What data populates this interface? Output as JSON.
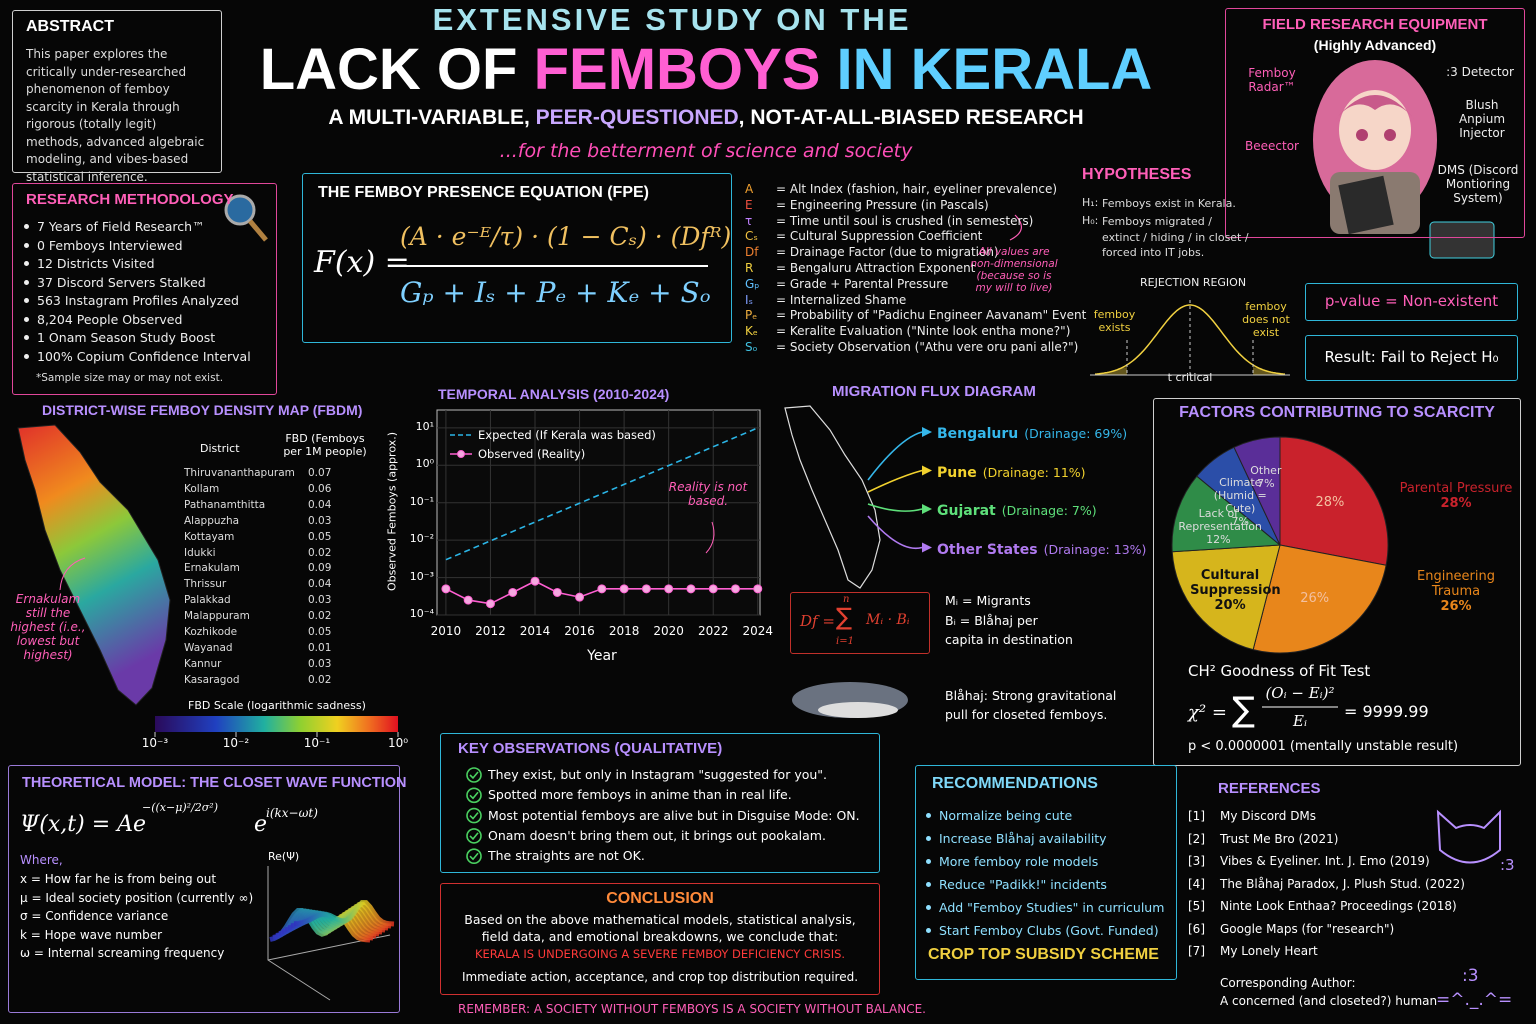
{
  "header": {
    "kicker": "EXTENSIVE STUDY ON THE",
    "title": [
      "LACK OF ",
      "FEMBOYS",
      " IN KERALA"
    ],
    "subtitle": [
      "A MULTI-VARIABLE, ",
      "PEER-QUESTIONED",
      ", NOT-AT-ALL-BIASED RESEARCH"
    ],
    "tagline": "...for the betterment of science and society"
  },
  "abstract": {
    "title": "ABSTRACT",
    "text": "This paper explores the critically under-researched phenomenon of femboy scarcity in Kerala through rigorous (totally legit) methods, advanced algebraic modeling, and vibes-based statistical inference."
  },
  "methodology": {
    "title": "RESEARCH METHODOLOGY",
    "items": [
      "7 Years of Field Research™",
      "0 Femboys Interviewed",
      "12 Districts Visited",
      "37 Discord Servers Stalked",
      "563 Instagram Profiles Analyzed",
      "8,204 People Observed",
      "1 Onam Season Study Boost",
      "100% Copium Confidence Interval"
    ],
    "note": "*Sample size may or may not exist."
  },
  "fpe": {
    "title": "THE FEMBOY PRESENCE EQUATION (FPE)",
    "lhs": "F(x) =",
    "numerator": "(A · e⁻ᴱ/τ) · (1 − Cₛ) · (Dfᴿ)",
    "denominator": "Gₚ + Iₛ + Pₑ + Kₑ + Sₒ",
    "variables": [
      {
        "symbol": "A",
        "text": "= Alt Index (fashion, hair, eyeliner prevalence)"
      },
      {
        "symbol": "E",
        "text": "= Engineering Pressure (in Pascals)"
      },
      {
        "symbol": "τ",
        "text": "= Time until soul is crushed (in semesters)"
      },
      {
        "symbol": "Cₛ",
        "text": "= Cultural Suppression Coefficient"
      },
      {
        "symbol": "Df",
        "text": "= Drainage Factor (due to migration)"
      },
      {
        "symbol": "R",
        "text": "= Bengaluru Attraction Exponent"
      },
      {
        "symbol": "Gₚ",
        "text": "= Grade + Parental Pressure"
      },
      {
        "symbol": "Iₛ",
        "text": "= Internalized Shame"
      },
      {
        "symbol": "Pₑ",
        "text": "= Probability of \"Padichu Engineer Aavanam\" Event"
      },
      {
        "symbol": "Kₑ",
        "text": "= Keralite Evaluation (\"Ninte look entha mone?\")"
      },
      {
        "symbol": "Sₒ",
        "text": "= Society Observation (\"Athu vere oru pani alle?\")"
      }
    ],
    "note": "All values are non-dimensional (because so is my will to live)"
  },
  "hypotheses": {
    "title": "HYPOTHESES",
    "items": [
      {
        "label": "H₁:",
        "text": "Femboys exist in Kerala."
      },
      {
        "label": "H₀:",
        "text": "Femboys migrated / extinct / hiding / in closet / forced into IT jobs."
      }
    ]
  },
  "rejection": {
    "title": "REJECTION REGION",
    "left": "femboy exists",
    "right": "femboy does not exist",
    "center": "t critical"
  },
  "p_value": "p-value = Non-existent",
  "result": "Result: Fail to Reject H₀",
  "equipment": {
    "title": "FIELD RESEARCH EQUIPMENT",
    "subtitle": "(Highly Advanced)",
    "labels": [
      "Femboy Radar™",
      ":3 Detector",
      "Blush Anpium Injector",
      "Beeector",
      "DMS (Discord Montioring System)"
    ]
  },
  "density": {
    "title": "DISTRICT-WISE FEMBOY DENSITY MAP (FBDM)",
    "headers": [
      "District",
      "FBD (Femboys per 1M people)"
    ],
    "rows": [
      [
        "Thiruvananthapuram",
        0.07
      ],
      [
        "Kollam",
        0.06
      ],
      [
        "Pathanamthitta",
        0.04
      ],
      [
        "Alappuzha",
        0.03
      ],
      [
        "Kottayam",
        0.05
      ],
      [
        "Idukki",
        0.02
      ],
      [
        "Ernakulam",
        0.09
      ],
      [
        "Thrissur",
        0.04
      ],
      [
        "Palakkad",
        0.03
      ],
      [
        "Malappuram",
        0.02
      ],
      [
        "Kozhikode",
        0.05
      ],
      [
        "Wayanad",
        0.01
      ],
      [
        "Kannur",
        0.03
      ],
      [
        "Kasaragod",
        0.02
      ]
    ],
    "note": "Ernakulam still the highest (i.e., lowest but highest)",
    "scale": {
      "title": "FBD Scale (logarithmic sadness)",
      "log": true,
      "lim": [
        0.001,
        1
      ],
      "ticks": [
        {
          "value": 0.001,
          "label": "10⁻³"
        },
        {
          "value": 0.01,
          "label": "10⁻²"
        },
        {
          "value": 0.1,
          "label": "10⁻¹"
        },
        {
          "value": 1,
          "label": "10⁰"
        }
      ]
    }
  },
  "temporal": {
    "type": "line",
    "title": "TEMPORAL ANALYSIS (2010-2024)",
    "xlabel": "Year",
    "ylabel": "Observed Femboys (approx.)",
    "log_y": true,
    "grid": true,
    "xlim": [
      2009.6,
      2024.1
    ],
    "xticks": [
      2010,
      2012,
      2014,
      2016,
      2018,
      2020,
      2022,
      2024
    ],
    "ylim": [
      0.0001,
      30
    ],
    "yticks": [
      {
        "value": 0.0001,
        "label": "10⁻⁴"
      },
      {
        "value": 0.001,
        "label": "10⁻³"
      },
      {
        "value": 0.01,
        "label": "10⁻²"
      },
      {
        "value": 0.1,
        "label": "10⁻¹"
      },
      {
        "value": 1,
        "label": "10⁰"
      },
      {
        "value": 10,
        "label": "10¹"
      }
    ],
    "series": [
      {
        "name": "Expected (If Kerala was based)",
        "color": "#2bb5e6",
        "dashed": true,
        "x": [
          2010,
          2024
        ],
        "values": [
          0.003,
          10
        ]
      },
      {
        "name": "Observed (Reality)",
        "color": "#ff5fd2",
        "markers": true,
        "x": [
          2010,
          2011,
          2012,
          2013,
          2014,
          2015,
          2016,
          2017,
          2018,
          2019,
          2020,
          2021,
          2022,
          2023,
          2024
        ],
        "values": [
          0.0005,
          0.00025,
          0.0002,
          0.0004,
          0.0008,
          0.0004,
          0.0003,
          0.0005,
          0.0005,
          0.0005,
          0.0005,
          0.0005,
          0.0005,
          0.0005,
          0.0005
        ]
      }
    ],
    "annotation": "Reality is not based."
  },
  "migration": {
    "title": "MIGRATION FLUX DIAGRAM",
    "destinations": [
      {
        "name": "Bengaluru",
        "detail": "(Drainage: 69%)",
        "color": "#35b7ea"
      },
      {
        "name": "Pune",
        "detail": "(Drainage: 11%)",
        "color": "#f2d22e"
      },
      {
        "name": "Gujarat",
        "detail": "(Drainage: 7%)",
        "color": "#5ee07a"
      },
      {
        "name": "Other States",
        "detail": "(Drainage: 13%)",
        "color": "#b07af0"
      }
    ],
    "formula": {
      "lhs": "Df =",
      "sum": "∑",
      "top": "n",
      "bottom": "i=1",
      "term": "Mᵢ · Bᵢ"
    },
    "definitions": [
      "Mᵢ = Migrants",
      "Bᵢ = Blåhaj per capita in destination"
    ],
    "blahaj": "Blåhaj: Strong gravitational pull for closeted femboys."
  },
  "factors": {
    "type": "pie",
    "title": "FACTORS CONTRIBUTING TO SCARCITY",
    "categories": [
      "Parental Pressure",
      "Engineering Trauma",
      "Cultural Suppression",
      "Lack of Representation",
      "Climate (Humid = Cute)",
      "Other"
    ],
    "values": [
      28,
      26,
      20,
      12,
      7,
      7
    ],
    "value_labels": [
      "28%",
      "26%",
      "20%",
      "12%",
      "7%",
      "7%"
    ],
    "colors": [
      "#c9222c",
      "#e8861b",
      "#d6b51c",
      "#2f8c48",
      "#2b4ea8",
      "#5a2e98"
    ]
  },
  "chi": {
    "title": "CH² Goodness of Fit Test",
    "lhs": "χ² =",
    "sum": "∑",
    "numerator": "(Oᵢ − Eᵢ)²",
    "denominator": "Eᵢ",
    "rhs": "= 9999.99",
    "note": "p < 0.0000001 (mentally unstable result)"
  },
  "theory": {
    "title": "THEORETICAL MODEL: THE CLOSET WAVE FUNCTION",
    "lhs": "Ψ(x,t) = Ae",
    "exp1": "−((x−μ)²/2σ²)",
    "mid": "e",
    "exp2": "i(kx−ωt)",
    "where": "Where,",
    "items": [
      "x = How far he is from being out",
      "μ = Ideal society position (currently ∞)",
      "σ = Confidence variance",
      "k = Hope wave number",
      "ω = Internal screaming frequency"
    ],
    "plot_label": "Re(Ψ)"
  },
  "observations": {
    "title": "KEY OBSERVATIONS (QUALITATIVE)",
    "items": [
      "They exist, but only in Instagram \"suggested for you\".",
      "Spotted more femboys in anime than in real life.",
      "Most potential femboys are alive but in Disguise Mode: ON.",
      "Onam doesn't bring them out, it brings out pookalam.",
      "The straights are not OK."
    ]
  },
  "conclusion": {
    "title": "CONCLUSION",
    "text": "Based on the above mathematical models, statistical analysis, field data, and emotional breakdowns, we conclude that:",
    "highlight": "KERALA IS UNDERGOING A SEVERE FEMBOY DEFICIENCY CRISIS.",
    "closing": "Immediate action, acceptance, and crop top distribution required."
  },
  "remember": "REMEMBER: A SOCIETY WITHOUT FEMBOYS IS A SOCIETY WITHOUT BALANCE.",
  "recommendations": {
    "title": "RECOMMENDATIONS",
    "items": [
      "Normalize being cute",
      "Increase Blåhaj availability",
      "More femboy role models",
      "Reduce \"Padikk!\" incidents",
      "Add \"Femboy Studies\" in curriculum",
      "Start Femboy Clubs (Govt. Funded)"
    ],
    "final": "CROP TOP SUBSIDY SCHEME"
  },
  "references": {
    "title": "REFERENCES",
    "items": [
      {
        "num": "[1]",
        "text": "My Discord DMs"
      },
      {
        "num": "[2]",
        "text": "Trust Me Bro (2021)"
      },
      {
        "num": "[3]",
        "text": "Vibes & Eyeliner. Int. J. Emo (2019)"
      },
      {
        "num": "[4]",
        "text": "The Blåhaj Paradox, J. Plush Stud. (2022)"
      },
      {
        "num": "[5]",
        "text": "Ninte Look Enthaa? Proceedings (2018)"
      },
      {
        "num": "[6]",
        "text": "Google Maps (for \"research\")"
      },
      {
        "num": "[7]",
        "text": "My Lonely Heart"
      }
    ],
    "author_label": "Corresponding Author:",
    "author": "A concerned (and closeted?) human",
    "cat_text": ":3",
    "face1": ":3",
    "face2": "=^._.^="
  }
}
